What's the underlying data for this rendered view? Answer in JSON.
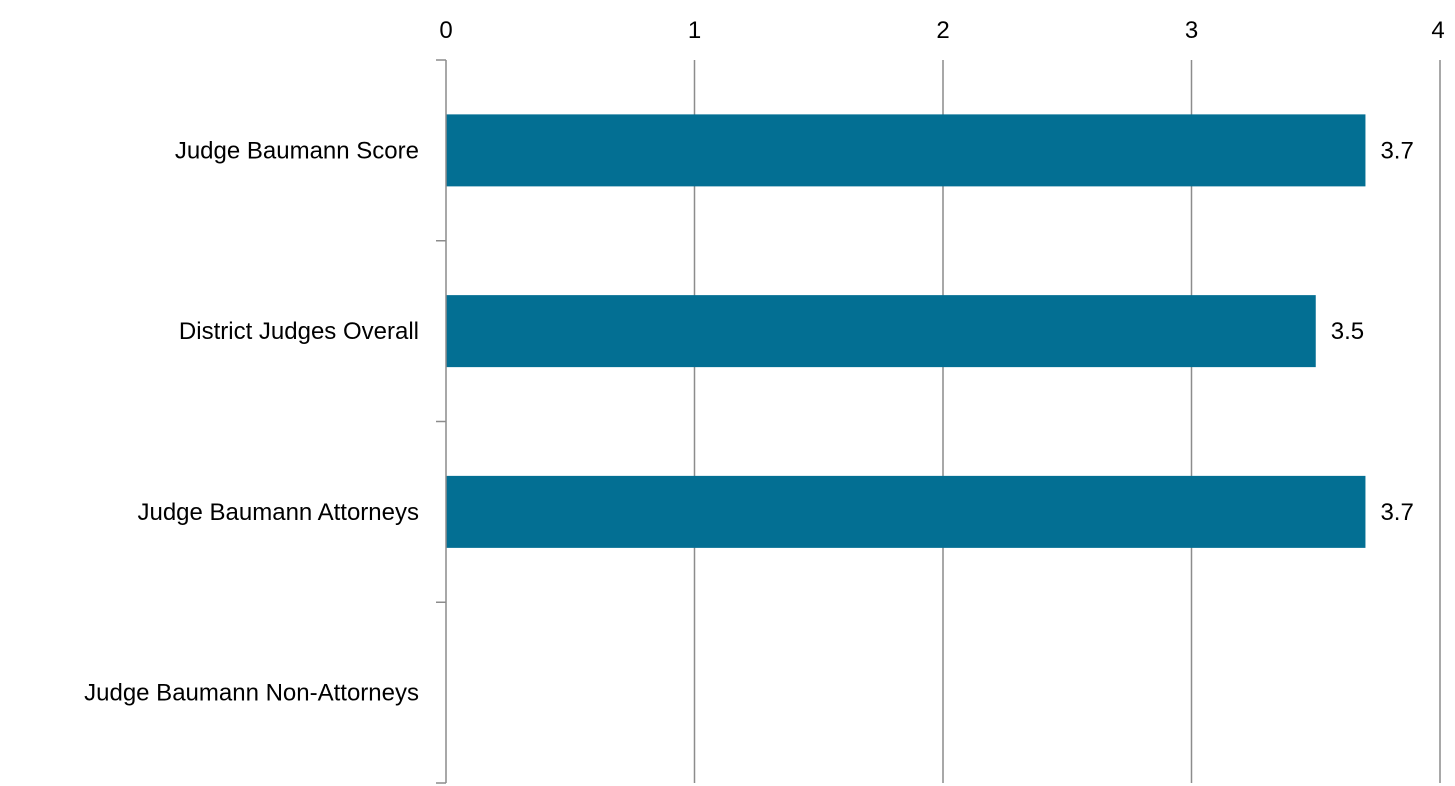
{
  "chart_data": {
    "type": "bar",
    "orientation": "horizontal",
    "title": "",
    "xlabel": "",
    "ylabel": "",
    "categories": [
      "Judge Baumann Score",
      "District Judges Overall",
      "Judge Baumann Attorneys",
      "Judge Baumann Non-Attorneys"
    ],
    "values": [
      3.7,
      3.5,
      3.7,
      null
    ],
    "value_labels": [
      "3.7",
      "3.5",
      "3.7",
      ""
    ],
    "xlim": [
      0,
      4
    ],
    "x_ticks": [
      "0",
      "1",
      "2",
      "3",
      "4"
    ],
    "x_axis_position": "top",
    "grid": "vertical",
    "legend": "none",
    "colors": {
      "bar": "#036f93",
      "grid": "#8c8c8c",
      "text": "#000000"
    }
  }
}
